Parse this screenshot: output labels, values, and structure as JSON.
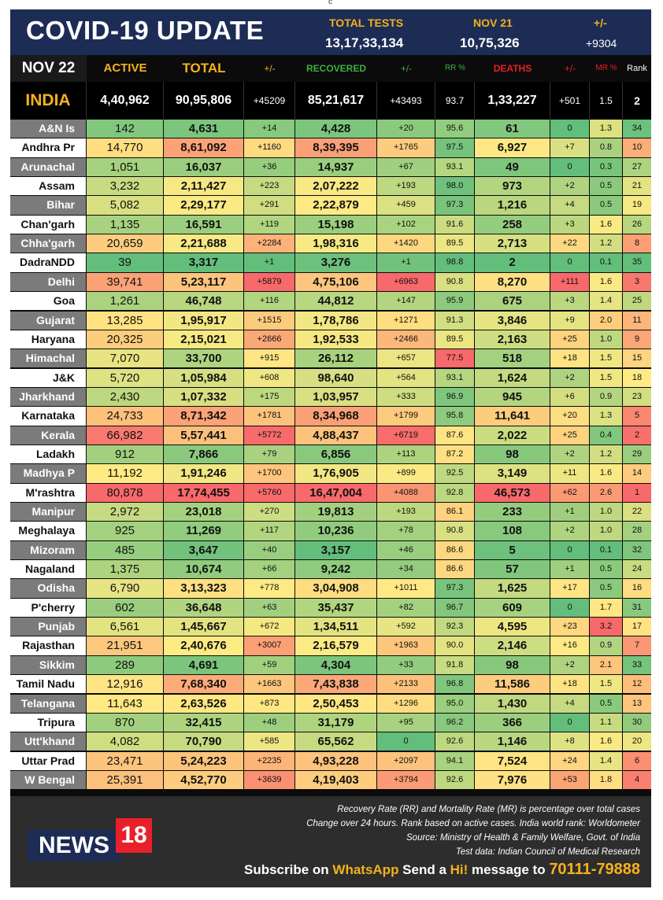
{
  "top_mark": "c",
  "header": {
    "title": "COVID-19 UPDATE",
    "tests_label": "TOTAL TESTS",
    "tests_value": "13,17,33,134",
    "date_label": "NOV 21",
    "date_value": "10,75,326",
    "change_label": "+/-",
    "change_value": "+9304"
  },
  "columns": {
    "date": "NOV 22",
    "active": "ACTIVE",
    "total": "TOTAL",
    "total_change": "+/-",
    "recovered": "RECOVERED",
    "recovered_change": "+/-",
    "rr": "RR %",
    "deaths": "DEATHS",
    "deaths_change": "+/-",
    "mr": "MR %",
    "rank": "Rank"
  },
  "india": {
    "name": "INDIA",
    "active": "4,40,962",
    "total": "90,95,806",
    "total_change": "+45209",
    "recovered": "85,21,617",
    "recovered_change": "+43493",
    "rr": "93.7",
    "deaths": "1,33,227",
    "deaths_change": "+501",
    "mr": "1.5",
    "rank": "2"
  },
  "states": [
    {
      "name": "A&N Is",
      "active": "142",
      "total": "4,631",
      "tc": "+14",
      "rec": "4,428",
      "rc": "+20",
      "rr": "95.6",
      "deaths": "61",
      "dc": "0",
      "mr": "1.3",
      "rank": "34"
    },
    {
      "name": "Andhra Pr",
      "active": "14,770",
      "total": "8,61,092",
      "tc": "+1160",
      "rec": "8,39,395",
      "rc": "+1765",
      "rr": "97.5",
      "deaths": "6,927",
      "dc": "+7",
      "mr": "0.8",
      "rank": "10"
    },
    {
      "name": "Arunachal",
      "active": "1,051",
      "total": "16,037",
      "tc": "+36",
      "rec": "14,937",
      "rc": "+67",
      "rr": "93.1",
      "deaths": "49",
      "dc": "0",
      "mr": "0.3",
      "rank": "27"
    },
    {
      "name": "Assam",
      "active": "3,232",
      "total": "2,11,427",
      "tc": "+223",
      "rec": "2,07,222",
      "rc": "+193",
      "rr": "98.0",
      "deaths": "973",
      "dc": "+2",
      "mr": "0.5",
      "rank": "21"
    },
    {
      "name": "Bihar",
      "active": "5,082",
      "total": "2,29,177",
      "tc": "+291",
      "rec": "2,22,879",
      "rc": "+459",
      "rr": "97.3",
      "deaths": "1,216",
      "dc": "+4",
      "mr": "0.5",
      "rank": "19"
    },
    {
      "name": "Chan'garh",
      "active": "1,135",
      "total": "16,591",
      "tc": "+119",
      "rec": "15,198",
      "rc": "+102",
      "rr": "91.6",
      "deaths": "258",
      "dc": "+3",
      "mr": "1.6",
      "rank": "26"
    },
    {
      "name": "Chha'garh",
      "active": "20,659",
      "total": "2,21,688",
      "tc": "+2284",
      "rec": "1,98,316",
      "rc": "+1420",
      "rr": "89.5",
      "deaths": "2,713",
      "dc": "+22",
      "mr": "1.2",
      "rank": "8"
    },
    {
      "name": "DadraNDD",
      "active": "39",
      "total": "3,317",
      "tc": "+1",
      "rec": "3,276",
      "rc": "+1",
      "rr": "98.8",
      "deaths": "2",
      "dc": "0",
      "mr": "0.1",
      "rank": "35"
    },
    {
      "name": "Delhi",
      "active": "39,741",
      "total": "5,23,117",
      "tc": "+5879",
      "rec": "4,75,106",
      "rc": "+6963",
      "rr": "90.8",
      "deaths": "8,270",
      "dc": "+111",
      "mr": "1.6",
      "rank": "3"
    },
    {
      "name": "Goa",
      "active": "1,261",
      "total": "46,748",
      "tc": "+116",
      "rec": "44,812",
      "rc": "+147",
      "rr": "95.9",
      "deaths": "675",
      "dc": "+3",
      "mr": "1.4",
      "rank": "25"
    },
    {
      "name": "Gujarat",
      "active": "13,285",
      "total": "1,95,917",
      "tc": "+1515",
      "rec": "1,78,786",
      "rc": "+1271",
      "rr": "91.3",
      "deaths": "3,846",
      "dc": "+9",
      "mr": "2.0",
      "rank": "11"
    },
    {
      "name": "Haryana",
      "active": "20,325",
      "total": "2,15,021",
      "tc": "+2666",
      "rec": "1,92,533",
      "rc": "+2466",
      "rr": "89.5",
      "deaths": "2,163",
      "dc": "+25",
      "mr": "1.0",
      "rank": "9"
    },
    {
      "name": "Himachal",
      "active": "7,070",
      "total": "33,700",
      "tc": "+915",
      "rec": "26,112",
      "rc": "+657",
      "rr": "77.5",
      "deaths": "518",
      "dc": "+18",
      "mr": "1.5",
      "rank": "15"
    },
    {
      "name": "J&K",
      "active": "5,720",
      "total": "1,05,984",
      "tc": "+608",
      "rec": "98,640",
      "rc": "+564",
      "rr": "93.1",
      "deaths": "1,624",
      "dc": "+2",
      "mr": "1.5",
      "rank": "18"
    },
    {
      "name": "Jharkhand",
      "active": "2,430",
      "total": "1,07,332",
      "tc": "+175",
      "rec": "1,03,957",
      "rc": "+333",
      "rr": "96.9",
      "deaths": "945",
      "dc": "+6",
      "mr": "0.9",
      "rank": "23"
    },
    {
      "name": "Karnataka",
      "active": "24,733",
      "total": "8,71,342",
      "tc": "+1781",
      "rec": "8,34,968",
      "rc": "+1799",
      "rr": "95.8",
      "deaths": "11,641",
      "dc": "+20",
      "mr": "1.3",
      "rank": "5"
    },
    {
      "name": "Kerala",
      "active": "66,982",
      "total": "5,57,441",
      "tc": "+5772",
      "rec": "4,88,437",
      "rc": "+6719",
      "rr": "87.6",
      "deaths": "2,022",
      "dc": "+25",
      "mr": "0.4",
      "rank": "2"
    },
    {
      "name": "Ladakh",
      "active": "912",
      "total": "7,866",
      "tc": "+79",
      "rec": "6,856",
      "rc": "+113",
      "rr": "87.2",
      "deaths": "98",
      "dc": "+2",
      "mr": "1.2",
      "rank": "29"
    },
    {
      "name": "Madhya P",
      "active": "11,192",
      "total": "1,91,246",
      "tc": "+1700",
      "rec": "1,76,905",
      "rc": "+899",
      "rr": "92.5",
      "deaths": "3,149",
      "dc": "+11",
      "mr": "1.6",
      "rank": "14"
    },
    {
      "name": "M'rashtra",
      "active": "80,878",
      "total": "17,74,455",
      "tc": "+5760",
      "rec": "16,47,004",
      "rc": "+4088",
      "rr": "92.8",
      "deaths": "46,573",
      "dc": "+62",
      "mr": "2.6",
      "rank": "1"
    },
    {
      "name": "Manipur",
      "active": "2,972",
      "total": "23,018",
      "tc": "+270",
      "rec": "19,813",
      "rc": "+193",
      "rr": "86.1",
      "deaths": "233",
      "dc": "+1",
      "mr": "1.0",
      "rank": "22"
    },
    {
      "name": "Meghalaya",
      "active": "925",
      "total": "11,269",
      "tc": "+117",
      "rec": "10,236",
      "rc": "+78",
      "rr": "90.8",
      "deaths": "108",
      "dc": "+2",
      "mr": "1.0",
      "rank": "28"
    },
    {
      "name": "Mizoram",
      "active": "485",
      "total": "3,647",
      "tc": "+40",
      "rec": "3,157",
      "rc": "+46",
      "rr": "86.6",
      "deaths": "5",
      "dc": "0",
      "mr": "0.1",
      "rank": "32"
    },
    {
      "name": "Nagaland",
      "active": "1,375",
      "total": "10,674",
      "tc": "+66",
      "rec": "9,242",
      "rc": "+34",
      "rr": "86.6",
      "deaths": "57",
      "dc": "+1",
      "mr": "0.5",
      "rank": "24"
    },
    {
      "name": "Odisha",
      "active": "6,790",
      "total": "3,13,323",
      "tc": "+778",
      "rec": "3,04,908",
      "rc": "+1011",
      "rr": "97.3",
      "deaths": "1,625",
      "dc": "+17",
      "mr": "0.5",
      "rank": "16"
    },
    {
      "name": "P'cherry",
      "active": "602",
      "total": "36,648",
      "tc": "+63",
      "rec": "35,437",
      "rc": "+82",
      "rr": "96.7",
      "deaths": "609",
      "dc": "0",
      "mr": "1.7",
      "rank": "31"
    },
    {
      "name": "Punjab",
      "active": "6,561",
      "total": "1,45,667",
      "tc": "+672",
      "rec": "1,34,511",
      "rc": "+592",
      "rr": "92.3",
      "deaths": "4,595",
      "dc": "+23",
      "mr": "3.2",
      "rank": "17"
    },
    {
      "name": "Rajasthan",
      "active": "21,951",
      "total": "2,40,676",
      "tc": "+3007",
      "rec": "2,16,579",
      "rc": "+1963",
      "rr": "90.0",
      "deaths": "2,146",
      "dc": "+16",
      "mr": "0.9",
      "rank": "7"
    },
    {
      "name": "Sikkim",
      "active": "289",
      "total": "4,691",
      "tc": "+59",
      "rec": "4,304",
      "rc": "+33",
      "rr": "91.8",
      "deaths": "98",
      "dc": "+2",
      "mr": "2.1",
      "rank": "33"
    },
    {
      "name": "Tamil Nadu",
      "active": "12,916",
      "total": "7,68,340",
      "tc": "+1663",
      "rec": "7,43,838",
      "rc": "+2133",
      "rr": "96.8",
      "deaths": "11,586",
      "dc": "+18",
      "mr": "1.5",
      "rank": "12"
    },
    {
      "name": "Telangana",
      "active": "11,643",
      "total": "2,63,526",
      "tc": "+873",
      "rec": "2,50,453",
      "rc": "+1296",
      "rr": "95.0",
      "deaths": "1,430",
      "dc": "+4",
      "mr": "0.5",
      "rank": "13"
    },
    {
      "name": "Tripura",
      "active": "870",
      "total": "32,415",
      "tc": "+48",
      "rec": "31,179",
      "rc": "+95",
      "rr": "96.2",
      "deaths": "366",
      "dc": "0",
      "mr": "1.1",
      "rank": "30"
    },
    {
      "name": "Utt'khand",
      "active": "4,082",
      "total": "70,790",
      "tc": "+585",
      "rec": "65,562",
      "rc": "0",
      "rr": "92.6",
      "deaths": "1,146",
      "dc": "+8",
      "mr": "1.6",
      "rank": "20"
    },
    {
      "name": "Uttar Prad",
      "active": "23,471",
      "total": "5,24,223",
      "tc": "+2235",
      "rec": "4,93,228",
      "rc": "+2097",
      "rr": "94.1",
      "deaths": "7,524",
      "dc": "+24",
      "mr": "1.4",
      "rank": "6"
    },
    {
      "name": "W Bengal",
      "active": "25,391",
      "total": "4,52,770",
      "tc": "+3639",
      "rec": "4,19,403",
      "rc": "+3794",
      "rr": "92.6",
      "deaths": "7,976",
      "dc": "+53",
      "mr": "1.8",
      "rank": "4"
    }
  ],
  "footer": {
    "notes": [
      "Recovery Rate (RR) and Mortality Rate (MR) is percentage over total cases",
      "Change over 24 hours. Rank based on active cases. India world rank: Worldometer",
      "Source: Ministry of Health & Family Welfare, Govt. of India",
      "Test data: Indian Council of Medical Research"
    ],
    "logo_news": "NEWS",
    "logo_18": "18",
    "sub_prefix": "Subscribe on ",
    "sub_whatsapp": "WhatsApp",
    "sub_mid": " Send a ",
    "sub_hi": "Hi!",
    "sub_msg": " message to ",
    "sub_num": "70111-79888"
  },
  "colors": {
    "header_bg": "#1d2c55",
    "accent_yellow": "#f5b21b",
    "recovered_green": "#3fae3f",
    "deaths_red": "#e8202a",
    "heat_green": "#63be7b",
    "heat_yellow": "#ffeb84",
    "heat_red": "#f8696b"
  }
}
